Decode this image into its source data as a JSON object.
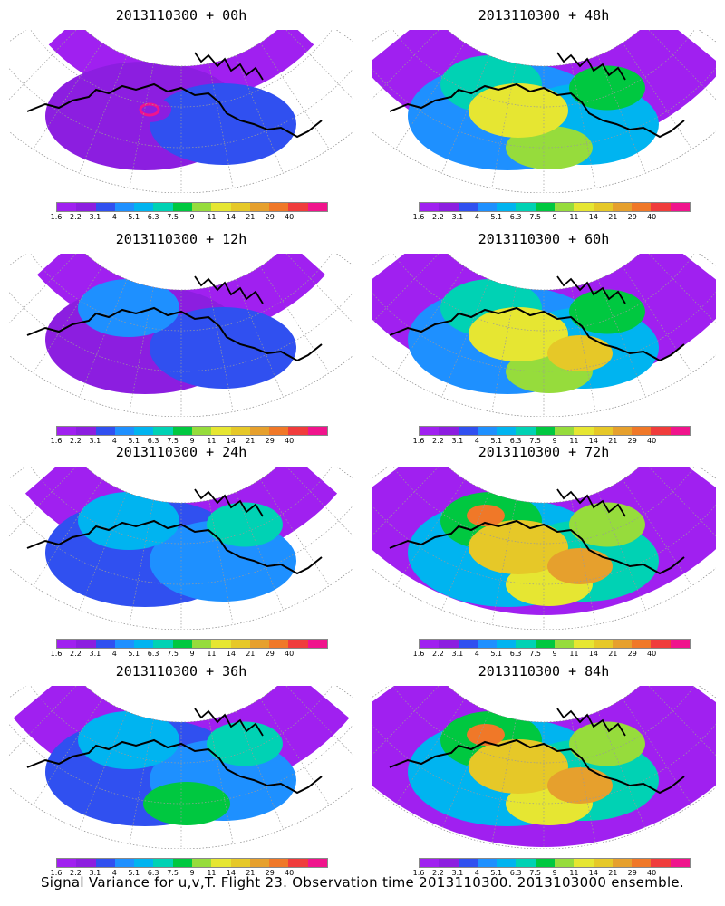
{
  "panels": [
    {
      "title": "2013110300 + 00h",
      "level": 0
    },
    {
      "title": "2013110300 + 48h",
      "level": 4
    },
    {
      "title": "2013110300 + 12h",
      "level": 1
    },
    {
      "title": "2013110300 + 60h",
      "level": 5
    },
    {
      "title": "2013110300 + 24h",
      "level": 2
    },
    {
      "title": "2013110300 + 72h",
      "level": 6
    },
    {
      "title": "2013110300 + 36h",
      "level": 3
    },
    {
      "title": "2013110300 + 84h",
      "level": 7
    }
  ],
  "colorbar": {
    "labels": [
      "1.6",
      "2.2",
      "3.1",
      "4",
      "5.1",
      "6.3",
      "7.5",
      "9",
      "11",
      "14",
      "21",
      "29",
      "40"
    ],
    "colors": [
      "#a020f0",
      "#8c1ee0",
      "#3050f0",
      "#1e90ff",
      "#00b4f0",
      "#00d2b4",
      "#00c840",
      "#96dc3c",
      "#e6e632",
      "#e6c828",
      "#e6a02d",
      "#f07828",
      "#f03c3c",
      "#f0148c"
    ]
  },
  "caption": "Signal Variance for u,v,T. Flight 23. Observation time 2013110300. 2013103000 ensemble."
}
